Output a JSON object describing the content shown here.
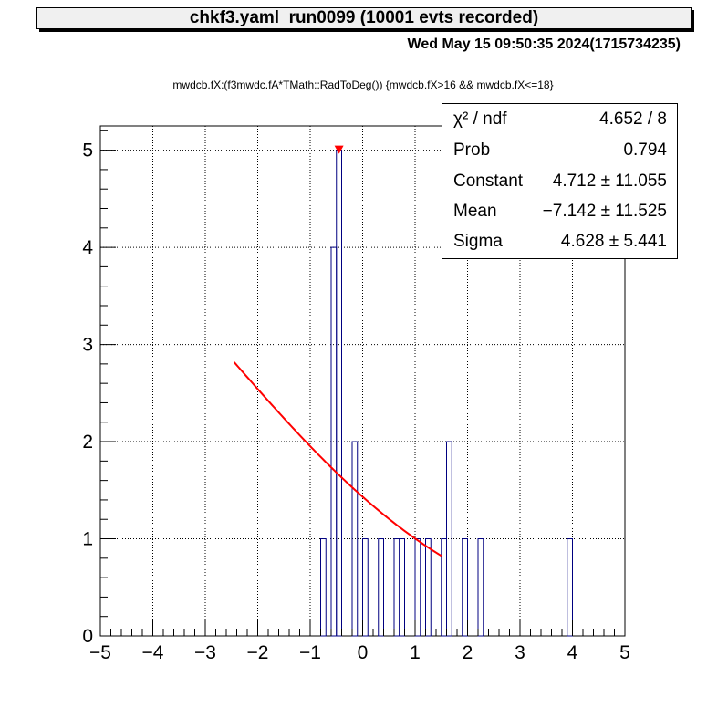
{
  "header": {
    "title": "chkf3.yaml  run0099 (10001 evts recorded)",
    "datestamp": "Wed May 15 09:50:35 2024(1715734235)"
  },
  "stats": {
    "rows": [
      {
        "name": "χ² / ndf",
        "value": "4.652 / 8"
      },
      {
        "name": "Prob",
        "value": "0.794"
      },
      {
        "name": "Constant",
        "value": "4.712 ± 11.055"
      },
      {
        "name": "Mean",
        "value": "−7.142 ± 11.525"
      },
      {
        "name": "Sigma",
        "value": "4.628 ± 5.441"
      }
    ]
  },
  "chart_data": {
    "type": "bar",
    "title": "mwdcb.fX:(f3mwdc.fA*TMath::RadToDeg()) {mwdcb.fX>16 && mwdcb.fX<=18}",
    "xlim": [
      -5,
      5
    ],
    "ylim": [
      0,
      5.25
    ],
    "xticks": [
      "−5",
      "−4",
      "−3",
      "−2",
      "−1",
      "0",
      "1",
      "2",
      "3",
      "4",
      "5"
    ],
    "yticks": [
      "0",
      "1",
      "2",
      "3",
      "4",
      "5"
    ],
    "grid": true,
    "bin_width": 0.1,
    "bins": [
      {
        "x": -0.8,
        "y": 1
      },
      {
        "x": -0.6,
        "y": 4
      },
      {
        "x": -0.5,
        "y": 5
      },
      {
        "x": -0.2,
        "y": 2
      },
      {
        "x": 0.0,
        "y": 1
      },
      {
        "x": 0.3,
        "y": 1
      },
      {
        "x": 0.6,
        "y": 1
      },
      {
        "x": 0.7,
        "y": 1
      },
      {
        "x": 1.0,
        "y": 1
      },
      {
        "x": 1.2,
        "y": 1
      },
      {
        "x": 1.5,
        "y": 1
      },
      {
        "x": 1.6,
        "y": 2
      },
      {
        "x": 1.9,
        "y": 1
      },
      {
        "x": 2.2,
        "y": 1
      },
      {
        "x": 3.9,
        "y": 1
      }
    ],
    "fit": {
      "type": "gaus",
      "constant": 4.712,
      "mean": -7.142,
      "sigma": 4.628,
      "x_range": [
        -2.45,
        1.5
      ],
      "color": "#ff0000"
    },
    "max_marker": {
      "x": -0.45,
      "y": 5,
      "color": "#ff0000"
    },
    "hist_color": "#000080"
  }
}
